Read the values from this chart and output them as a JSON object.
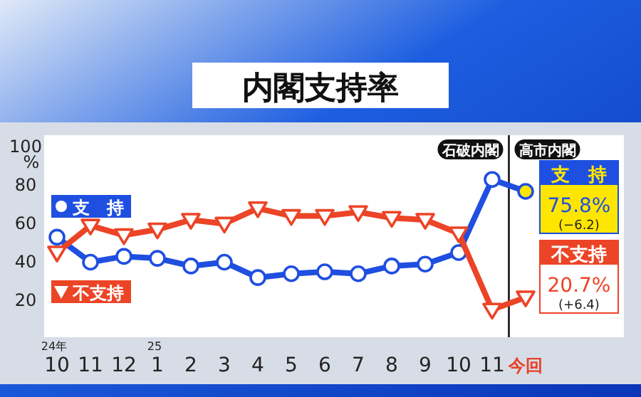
{
  "chart_data": {
    "type": "line",
    "title": "内閣支持率",
    "ylabel": "%",
    "categories": [
      "24年\n10",
      "11",
      "12",
      "25\n1",
      "2",
      "3",
      "4",
      "5",
      "6",
      "7",
      "8",
      "9",
      "10",
      "11",
      "今回"
    ],
    "series": [
      {
        "name": "支　持",
        "color": "#1f4fe0",
        "marker": "circle",
        "values": [
          52,
          39,
          42,
          41,
          37,
          39,
          31,
          33,
          34,
          33,
          37,
          38,
          44,
          82,
          75.8
        ],
        "value_labels": [
          null,
          null,
          null,
          null,
          null,
          null,
          null,
          null,
          null,
          null,
          null,
          null,
          null,
          null,
          "75.8%"
        ]
      },
      {
        "name": "不支持",
        "color": "#ec4426",
        "marker": "triangle",
        "values": [
          44,
          58,
          53,
          56,
          61,
          59,
          67,
          63,
          63,
          65,
          62,
          61,
          54,
          14.3,
          20.7
        ],
        "value_labels": [
          null,
          null,
          null,
          null,
          null,
          null,
          null,
          null,
          null,
          null,
          null,
          null,
          null,
          null,
          "20.7%"
        ]
      }
    ],
    "ylim": [
      0,
      105
    ],
    "yticks": [
      20,
      40,
      60,
      80,
      100
    ],
    "legend": "left",
    "annotations": [
      "石破内閣",
      "高市内閣",
      "(−6.2)",
      "(+6.4)"
    ]
  }
}
